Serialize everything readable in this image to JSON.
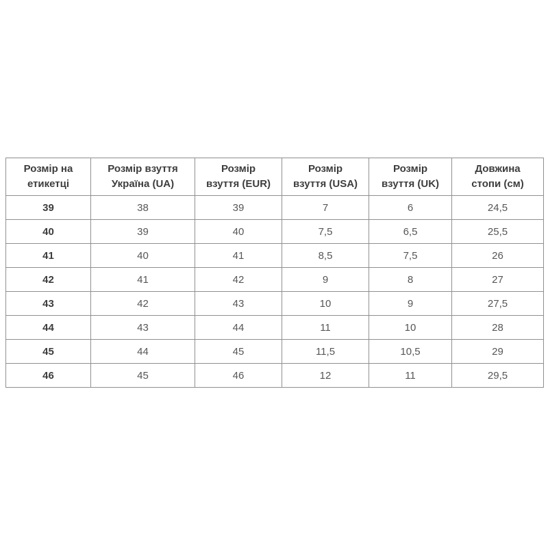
{
  "colors": {
    "background": "#ffffff",
    "table_border": "#8f8f8f",
    "header_text": "#3d3d3d",
    "cell_text": "#565656"
  },
  "chart_data": {
    "type": "table",
    "title": "",
    "columns": [
      "Розмір на\nетикетці",
      "Розмір взуття\nУкраїна (UA)",
      "Розмір\nвзуття (EUR)",
      "Розмір\nвзуття (USA)",
      "Розмір\nвзуття (UK)",
      "Довжина\nстопи (см)"
    ],
    "rows": [
      [
        "39",
        "38",
        "39",
        "7",
        "6",
        "24,5"
      ],
      [
        "40",
        "39",
        "40",
        "7,5",
        "6,5",
        "25,5"
      ],
      [
        "41",
        "40",
        "41",
        "8,5",
        "7,5",
        "26"
      ],
      [
        "42",
        "41",
        "42",
        "9",
        "8",
        "27"
      ],
      [
        "43",
        "42",
        "43",
        "10",
        "9",
        "27,5"
      ],
      [
        "44",
        "43",
        "44",
        "11",
        "10",
        "28"
      ],
      [
        "45",
        "44",
        "45",
        "11,5",
        "10,5",
        "29"
      ],
      [
        "46",
        "45",
        "46",
        "12",
        "11",
        "29,5"
      ]
    ]
  }
}
